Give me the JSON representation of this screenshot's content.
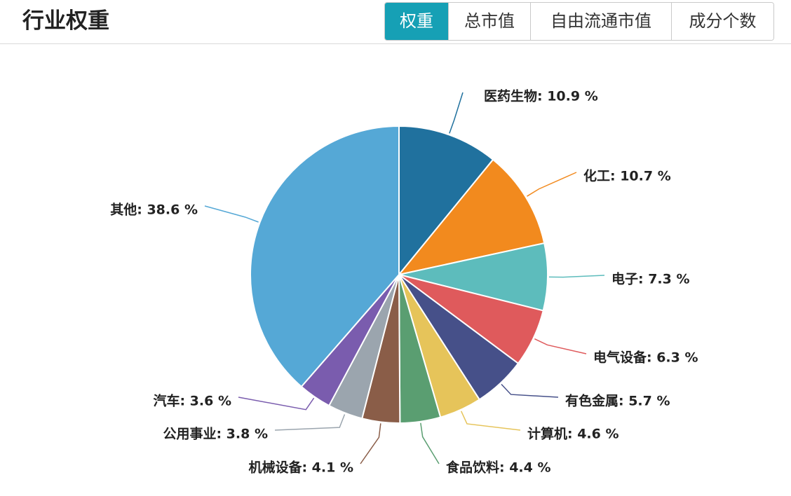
{
  "header": {
    "title": "行业权重",
    "tabs": [
      {
        "label": "权重",
        "active": true
      },
      {
        "label": "总市值",
        "active": false
      },
      {
        "label": "自由流通市值",
        "active": false
      },
      {
        "label": "成分个数",
        "active": false
      }
    ],
    "accent_color": "#16a0b5"
  },
  "chart_data": {
    "type": "pie",
    "title": "",
    "unit": "%",
    "legend": "none",
    "slices": [
      {
        "name": "医药生物",
        "value": 10.9,
        "color": "#20719e",
        "label": "医药生物: 10.9 %"
      },
      {
        "name": "化工",
        "value": 10.7,
        "color": "#f28a1e",
        "label": "化工: 10.7 %"
      },
      {
        "name": "电子",
        "value": 7.3,
        "color": "#5dbcbc",
        "label": "电子: 7.3 %"
      },
      {
        "name": "电气设备",
        "value": 6.3,
        "color": "#df5a5c",
        "label": "电气设备: 6.3 %"
      },
      {
        "name": "有色金属",
        "value": 5.7,
        "color": "#465089",
        "label": "有色金属: 5.7 %"
      },
      {
        "name": "计算机",
        "value": 4.6,
        "color": "#e6c45a",
        "label": "计算机: 4.6 %"
      },
      {
        "name": "食品饮料",
        "value": 4.4,
        "color": "#5a9e71",
        "label": "食品饮料: 4.4 %"
      },
      {
        "name": "机械设备",
        "value": 4.1,
        "color": "#8a5d48",
        "label": "机械设备: 4.1 %"
      },
      {
        "name": "公用事业",
        "value": 3.8,
        "color": "#9ba5ae",
        "label": "公用事业: 3.8 %"
      },
      {
        "name": "汽车",
        "value": 3.6,
        "color": "#7a5cae",
        "label": "汽车: 3.6 %"
      },
      {
        "name": "其他",
        "value": 38.6,
        "color": "#55a8d6",
        "label": "其他: 38.6 %"
      }
    ]
  }
}
